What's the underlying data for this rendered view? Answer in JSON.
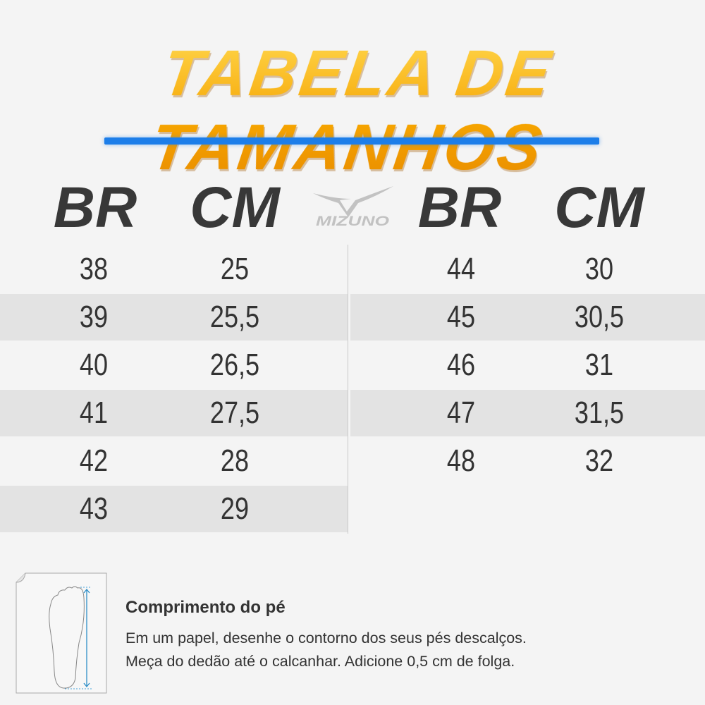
{
  "title": "TABELA DE TAMANHOS",
  "brand": "MIZUNO",
  "colors": {
    "title": "#f5a300",
    "accent_bar": "#1d7ee9",
    "text": "#333333",
    "stripe": "#e3e3e3"
  },
  "headers": {
    "left_br": "BR",
    "left_cm": "CM",
    "right_br": "BR",
    "right_cm": "CM"
  },
  "left_rows": [
    {
      "br": "38",
      "cm": "25"
    },
    {
      "br": "39",
      "cm": "25,5"
    },
    {
      "br": "40",
      "cm": "26,5"
    },
    {
      "br": "41",
      "cm": "27,5"
    },
    {
      "br": "42",
      "cm": "28"
    },
    {
      "br": "43",
      "cm": "29"
    }
  ],
  "right_rows": [
    {
      "br": "44",
      "cm": "30"
    },
    {
      "br": "45",
      "cm": "30,5"
    },
    {
      "br": "46",
      "cm": "31"
    },
    {
      "br": "47",
      "cm": "31,5"
    },
    {
      "br": "48",
      "cm": "32"
    }
  ],
  "footer": {
    "heading": "Comprimento do pé",
    "line1": "Em um papel, desenhe o contorno dos seus pés descalços.",
    "line2": "Meça do dedão até o calcanhar. Adicione 0,5 cm de folga.",
    "icon": "foot-measure-icon"
  }
}
